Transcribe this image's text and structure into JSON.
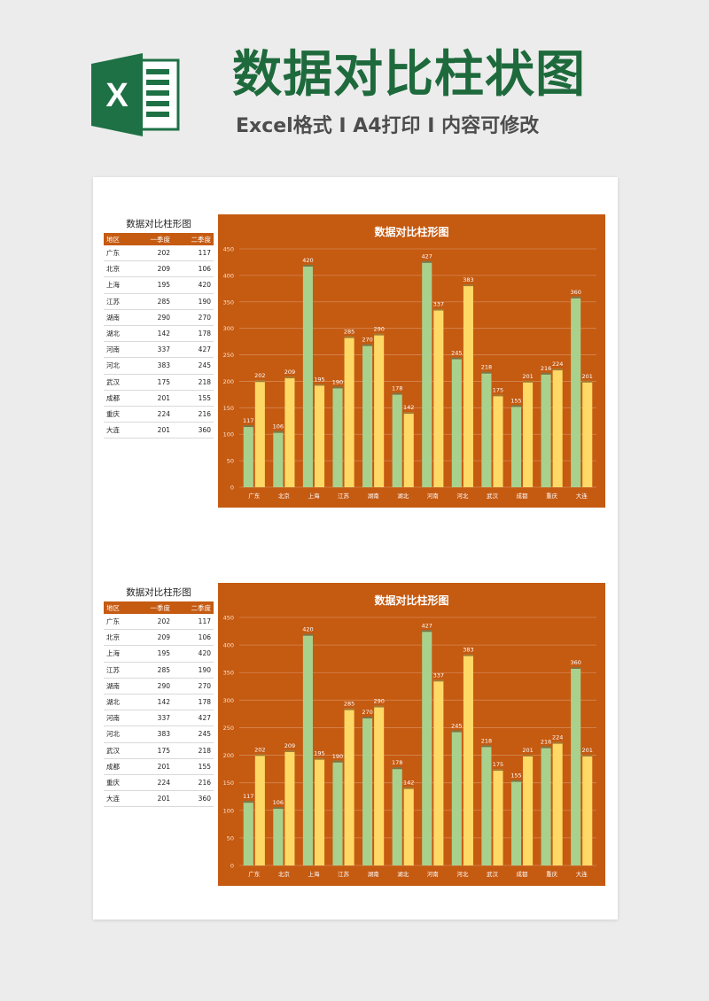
{
  "header": {
    "logo_letter": "X",
    "title": "数据对比柱状图",
    "subtitle": "Excel格式 I A4打印 I 内容可修改"
  },
  "colors": {
    "chart_bg": "#c55a11",
    "series1": "#a9d18e",
    "series2": "#ffd966",
    "title_green": "#1e6a3c"
  },
  "sheets": [
    {
      "table": {
        "title": "数据对比柱形图",
        "headers": [
          "地区",
          "一季度",
          "二季度"
        ],
        "rows": [
          [
            "广东",
            "202",
            "117"
          ],
          [
            "北京",
            "209",
            "106"
          ],
          [
            "上海",
            "195",
            "420"
          ],
          [
            "江苏",
            "285",
            "190"
          ],
          [
            "湖南",
            "290",
            "270"
          ],
          [
            "湖北",
            "142",
            "178"
          ],
          [
            "河南",
            "337",
            "427"
          ],
          [
            "河北",
            "383",
            "245"
          ],
          [
            "武汉",
            "175",
            "218"
          ],
          [
            "成都",
            "201",
            "155"
          ],
          [
            "重庆",
            "224",
            "216"
          ],
          [
            "大连",
            "201",
            "360"
          ]
        ]
      }
    },
    {
      "table": {
        "title": "数据对比柱形图",
        "headers": [
          "地区",
          "一季度",
          "二季度"
        ],
        "rows": [
          [
            "广东",
            "202",
            "117"
          ],
          [
            "北京",
            "209",
            "106"
          ],
          [
            "上海",
            "195",
            "420"
          ],
          [
            "江苏",
            "285",
            "190"
          ],
          [
            "湖南",
            "290",
            "270"
          ],
          [
            "湖北",
            "142",
            "178"
          ],
          [
            "河南",
            "337",
            "427"
          ],
          [
            "河北",
            "383",
            "245"
          ],
          [
            "武汉",
            "175",
            "218"
          ],
          [
            "成都",
            "201",
            "155"
          ],
          [
            "重庆",
            "224",
            "216"
          ],
          [
            "大连",
            "201",
            "360"
          ]
        ]
      }
    }
  ],
  "chart_data": [
    {
      "type": "bar",
      "title": "数据对比柱形图",
      "categories": [
        "广东",
        "北京",
        "上海",
        "江苏",
        "湖南",
        "湖北",
        "河南",
        "河北",
        "武汉",
        "成都",
        "重庆",
        "大连"
      ],
      "series": [
        {
          "values": [
            117,
            106,
            420,
            190,
            270,
            178,
            427,
            245,
            218,
            155,
            216,
            360
          ]
        },
        {
          "values": [
            202,
            209,
            195,
            285,
            290,
            142,
            337,
            383,
            175,
            201,
            224,
            201
          ]
        }
      ],
      "yticks": [
        0,
        50,
        100,
        150,
        200,
        250,
        300,
        350,
        400,
        450
      ],
      "ylim": [
        0,
        450
      ],
      "grid": true
    },
    {
      "type": "bar",
      "title": "数据对比柱形图",
      "categories": [
        "广东",
        "北京",
        "上海",
        "江苏",
        "湖南",
        "湖北",
        "河南",
        "河北",
        "武汉",
        "成都",
        "重庆",
        "大连"
      ],
      "series": [
        {
          "values": [
            117,
            106,
            420,
            190,
            270,
            178,
            427,
            245,
            218,
            155,
            216,
            360
          ]
        },
        {
          "values": [
            202,
            209,
            195,
            285,
            290,
            142,
            337,
            383,
            175,
            201,
            224,
            201
          ]
        }
      ],
      "yticks": [
        0,
        50,
        100,
        150,
        200,
        250,
        300,
        350,
        400,
        450
      ],
      "ylim": [
        0,
        450
      ],
      "grid": true
    }
  ]
}
